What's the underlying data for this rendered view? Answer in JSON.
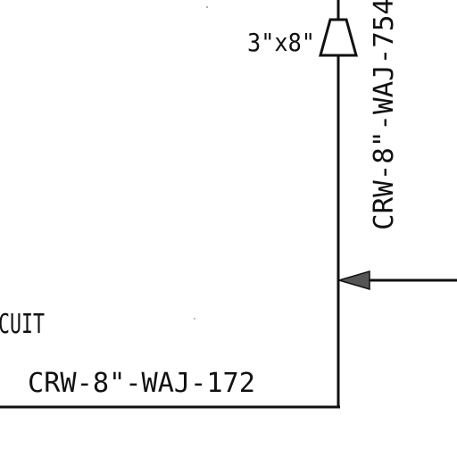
{
  "diagram": {
    "reducer_label": "3\"x8\"",
    "vertical_line_label": "CRW-8\"-WAJ-754",
    "partial_text": "CUIT",
    "horizontal_line_label": "CRW-8\"-WAJ-172"
  },
  "colors": {
    "ink": "#111111",
    "paper": "#ffffff",
    "arrow_fill": "#555555"
  }
}
